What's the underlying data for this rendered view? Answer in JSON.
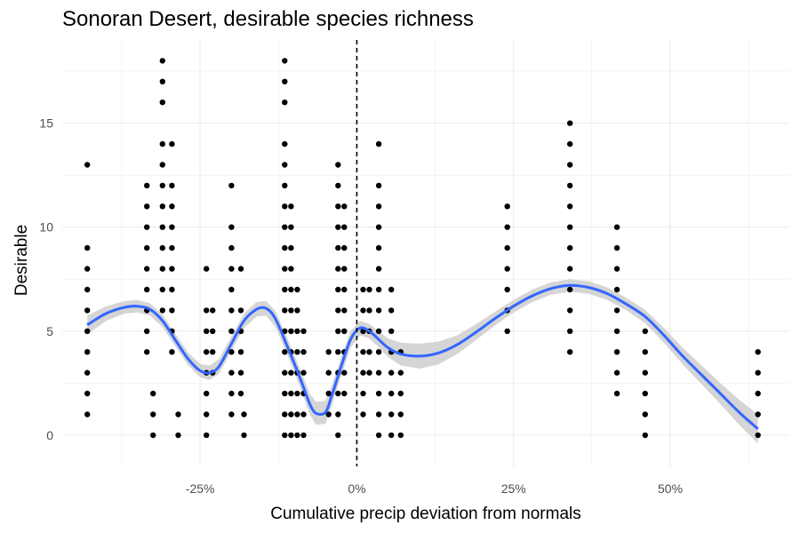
{
  "chart_data": {
    "type": "scatter",
    "title": "Sonoran Desert, desirable species richness",
    "xlabel": "Cumulative precip deviation from normals",
    "ylabel": "Desirable",
    "xlim": [
      -0.47,
      0.69
    ],
    "ylim": [
      -1.5,
      19
    ],
    "x_ticks": [
      -0.25,
      0,
      0.25,
      0.5
    ],
    "x_tick_labels": [
      "-25%",
      "0%",
      "25%",
      "50%"
    ],
    "y_ticks": [
      0,
      5,
      10,
      15
    ],
    "y_tick_labels": [
      "0",
      "5",
      "10",
      "15"
    ],
    "grid": true,
    "vline": {
      "x": 0,
      "style": "dashed",
      "color": "#000000"
    },
    "points_color": "#000000",
    "smooth_color": "#3366FF",
    "ribbon_color": "#D3D3D3",
    "points": [
      [
        -0.43,
        1
      ],
      [
        -0.43,
        2
      ],
      [
        -0.43,
        3
      ],
      [
        -0.43,
        4
      ],
      [
        -0.43,
        5
      ],
      [
        -0.43,
        6
      ],
      [
        -0.43,
        7
      ],
      [
        -0.43,
        8
      ],
      [
        -0.43,
        9
      ],
      [
        -0.43,
        13
      ],
      [
        -0.335,
        4
      ],
      [
        -0.335,
        5
      ],
      [
        -0.335,
        6
      ],
      [
        -0.335,
        7
      ],
      [
        -0.335,
        8
      ],
      [
        -0.335,
        9
      ],
      [
        -0.335,
        10
      ],
      [
        -0.335,
        11
      ],
      [
        -0.335,
        12
      ],
      [
        -0.325,
        0
      ],
      [
        -0.325,
        1
      ],
      [
        -0.325,
        2
      ],
      [
        -0.31,
        6
      ],
      [
        -0.31,
        7
      ],
      [
        -0.31,
        8
      ],
      [
        -0.31,
        9
      ],
      [
        -0.31,
        10
      ],
      [
        -0.31,
        11
      ],
      [
        -0.31,
        12
      ],
      [
        -0.31,
        13
      ],
      [
        -0.31,
        14
      ],
      [
        -0.31,
        16
      ],
      [
        -0.31,
        17
      ],
      [
        -0.31,
        18
      ],
      [
        -0.295,
        4
      ],
      [
        -0.295,
        5
      ],
      [
        -0.295,
        6
      ],
      [
        -0.295,
        7
      ],
      [
        -0.295,
        8
      ],
      [
        -0.295,
        9
      ],
      [
        -0.295,
        10
      ],
      [
        -0.295,
        11
      ],
      [
        -0.295,
        12
      ],
      [
        -0.295,
        14
      ],
      [
        -0.285,
        0
      ],
      [
        -0.285,
        1
      ],
      [
        -0.24,
        0
      ],
      [
        -0.24,
        1
      ],
      [
        -0.24,
        2
      ],
      [
        -0.24,
        3
      ],
      [
        -0.24,
        4
      ],
      [
        -0.24,
        5
      ],
      [
        -0.24,
        6
      ],
      [
        -0.24,
        8
      ],
      [
        -0.23,
        3
      ],
      [
        -0.23,
        4
      ],
      [
        -0.23,
        5
      ],
      [
        -0.23,
        6
      ],
      [
        -0.2,
        1
      ],
      [
        -0.2,
        2
      ],
      [
        -0.2,
        3
      ],
      [
        -0.2,
        4
      ],
      [
        -0.2,
        5
      ],
      [
        -0.2,
        6
      ],
      [
        -0.2,
        7
      ],
      [
        -0.2,
        8
      ],
      [
        -0.2,
        9
      ],
      [
        -0.2,
        10
      ],
      [
        -0.2,
        12
      ],
      [
        -0.185,
        2
      ],
      [
        -0.185,
        3
      ],
      [
        -0.185,
        4
      ],
      [
        -0.185,
        5
      ],
      [
        -0.185,
        6
      ],
      [
        -0.185,
        8
      ],
      [
        -0.18,
        0
      ],
      [
        -0.18,
        1
      ],
      [
        -0.115,
        0
      ],
      [
        -0.115,
        1
      ],
      [
        -0.115,
        2
      ],
      [
        -0.115,
        3
      ],
      [
        -0.115,
        4
      ],
      [
        -0.115,
        5
      ],
      [
        -0.115,
        6
      ],
      [
        -0.115,
        7
      ],
      [
        -0.115,
        8
      ],
      [
        -0.115,
        9
      ],
      [
        -0.115,
        10
      ],
      [
        -0.115,
        11
      ],
      [
        -0.115,
        12
      ],
      [
        -0.115,
        13
      ],
      [
        -0.115,
        14
      ],
      [
        -0.115,
        16
      ],
      [
        -0.115,
        17
      ],
      [
        -0.115,
        18
      ],
      [
        -0.105,
        0
      ],
      [
        -0.105,
        1
      ],
      [
        -0.105,
        2
      ],
      [
        -0.105,
        3
      ],
      [
        -0.105,
        4
      ],
      [
        -0.105,
        5
      ],
      [
        -0.105,
        6
      ],
      [
        -0.105,
        7
      ],
      [
        -0.105,
        8
      ],
      [
        -0.105,
        9
      ],
      [
        -0.105,
        10
      ],
      [
        -0.105,
        11
      ],
      [
        -0.095,
        0
      ],
      [
        -0.095,
        1
      ],
      [
        -0.095,
        2
      ],
      [
        -0.095,
        3
      ],
      [
        -0.095,
        4
      ],
      [
        -0.095,
        5
      ],
      [
        -0.095,
        6
      ],
      [
        -0.095,
        7
      ],
      [
        -0.085,
        0
      ],
      [
        -0.085,
        1
      ],
      [
        -0.085,
        2
      ],
      [
        -0.085,
        3
      ],
      [
        -0.085,
        4
      ],
      [
        -0.085,
        5
      ],
      [
        -0.045,
        1
      ],
      [
        -0.045,
        2
      ],
      [
        -0.045,
        3
      ],
      [
        -0.045,
        4
      ],
      [
        -0.03,
        0
      ],
      [
        -0.03,
        1
      ],
      [
        -0.03,
        2
      ],
      [
        -0.03,
        3
      ],
      [
        -0.03,
        4
      ],
      [
        -0.03,
        5
      ],
      [
        -0.03,
        6
      ],
      [
        -0.03,
        7
      ],
      [
        -0.03,
        8
      ],
      [
        -0.03,
        9
      ],
      [
        -0.03,
        10
      ],
      [
        -0.03,
        11
      ],
      [
        -0.03,
        12
      ],
      [
        -0.03,
        13
      ],
      [
        -0.02,
        2
      ],
      [
        -0.02,
        3
      ],
      [
        -0.02,
        4
      ],
      [
        -0.02,
        5
      ],
      [
        -0.02,
        6
      ],
      [
        -0.02,
        7
      ],
      [
        -0.02,
        8
      ],
      [
        -0.02,
        9
      ],
      [
        -0.02,
        10
      ],
      [
        -0.02,
        11
      ],
      [
        0.01,
        1
      ],
      [
        0.01,
        2
      ],
      [
        0.01,
        3
      ],
      [
        0.01,
        4
      ],
      [
        0.01,
        5
      ],
      [
        0.01,
        6
      ],
      [
        0.01,
        7
      ],
      [
        0.02,
        3
      ],
      [
        0.02,
        4
      ],
      [
        0.02,
        5
      ],
      [
        0.02,
        6
      ],
      [
        0.02,
        7
      ],
      [
        0.035,
        0
      ],
      [
        0.035,
        1
      ],
      [
        0.035,
        2
      ],
      [
        0.035,
        3
      ],
      [
        0.035,
        4
      ],
      [
        0.035,
        5
      ],
      [
        0.035,
        6
      ],
      [
        0.035,
        7
      ],
      [
        0.035,
        8
      ],
      [
        0.035,
        9
      ],
      [
        0.035,
        10
      ],
      [
        0.035,
        11
      ],
      [
        0.035,
        12
      ],
      [
        0.035,
        14
      ],
      [
        0.055,
        0
      ],
      [
        0.055,
        1
      ],
      [
        0.055,
        2
      ],
      [
        0.055,
        3
      ],
      [
        0.055,
        4
      ],
      [
        0.055,
        5
      ],
      [
        0.055,
        6
      ],
      [
        0.055,
        7
      ],
      [
        0.07,
        0
      ],
      [
        0.07,
        1
      ],
      [
        0.07,
        2
      ],
      [
        0.07,
        3
      ],
      [
        0.07,
        4
      ],
      [
        0.24,
        5
      ],
      [
        0.24,
        6
      ],
      [
        0.24,
        7
      ],
      [
        0.24,
        8
      ],
      [
        0.24,
        9
      ],
      [
        0.24,
        10
      ],
      [
        0.24,
        11
      ],
      [
        0.34,
        4
      ],
      [
        0.34,
        5
      ],
      [
        0.34,
        6
      ],
      [
        0.34,
        7
      ],
      [
        0.34,
        8
      ],
      [
        0.34,
        9
      ],
      [
        0.34,
        10
      ],
      [
        0.34,
        11
      ],
      [
        0.34,
        12
      ],
      [
        0.34,
        13
      ],
      [
        0.34,
        14
      ],
      [
        0.34,
        15
      ],
      [
        0.415,
        2
      ],
      [
        0.415,
        3
      ],
      [
        0.415,
        4
      ],
      [
        0.415,
        5
      ],
      [
        0.415,
        6
      ],
      [
        0.415,
        7
      ],
      [
        0.415,
        8
      ],
      [
        0.415,
        9
      ],
      [
        0.415,
        10
      ],
      [
        0.46,
        0
      ],
      [
        0.46,
        1
      ],
      [
        0.46,
        2
      ],
      [
        0.46,
        3
      ],
      [
        0.46,
        4
      ],
      [
        0.46,
        5
      ],
      [
        0.64,
        0
      ],
      [
        0.64,
        1
      ],
      [
        0.64,
        2
      ],
      [
        0.64,
        3
      ],
      [
        0.64,
        4
      ]
    ],
    "smooth": [
      [
        -0.43,
        5.3
      ],
      [
        -0.4,
        5.85
      ],
      [
        -0.37,
        6.15
      ],
      [
        -0.35,
        6.2
      ],
      [
        -0.33,
        6.05
      ],
      [
        -0.31,
        5.5
      ],
      [
        -0.29,
        4.6
      ],
      [
        -0.27,
        3.7
      ],
      [
        -0.25,
        3.1
      ],
      [
        -0.235,
        3.0
      ],
      [
        -0.22,
        3.3
      ],
      [
        -0.2,
        4.4
      ],
      [
        -0.18,
        5.5
      ],
      [
        -0.16,
        6.05
      ],
      [
        -0.145,
        6.1
      ],
      [
        -0.13,
        5.6
      ],
      [
        -0.11,
        4.2
      ],
      [
        -0.09,
        2.7
      ],
      [
        -0.075,
        1.5
      ],
      [
        -0.065,
        1.05
      ],
      [
        -0.05,
        1.1
      ],
      [
        -0.04,
        1.9
      ],
      [
        -0.025,
        3.3
      ],
      [
        -0.01,
        4.6
      ],
      [
        0.005,
        5.15
      ],
      [
        0.02,
        5.0
      ],
      [
        0.035,
        4.6
      ],
      [
        0.05,
        4.2
      ],
      [
        0.07,
        3.9
      ],
      [
        0.1,
        3.8
      ],
      [
        0.13,
        3.95
      ],
      [
        0.16,
        4.35
      ],
      [
        0.19,
        4.95
      ],
      [
        0.22,
        5.6
      ],
      [
        0.25,
        6.2
      ],
      [
        0.28,
        6.7
      ],
      [
        0.31,
        7.05
      ],
      [
        0.34,
        7.2
      ],
      [
        0.37,
        7.1
      ],
      [
        0.4,
        6.8
      ],
      [
        0.43,
        6.3
      ],
      [
        0.46,
        5.7
      ],
      [
        0.49,
        4.8
      ],
      [
        0.52,
        3.8
      ],
      [
        0.55,
        2.9
      ],
      [
        0.58,
        2.0
      ],
      [
        0.61,
        1.1
      ],
      [
        0.64,
        0.3
      ]
    ],
    "band_halfwidth": [
      0.45,
      0.35,
      0.3,
      0.3,
      0.3,
      0.3,
      0.3,
      0.3,
      0.32,
      0.35,
      0.35,
      0.35,
      0.35,
      0.35,
      0.35,
      0.38,
      0.4,
      0.45,
      0.5,
      0.55,
      0.55,
      0.5,
      0.45,
      0.4,
      0.35,
      0.35,
      0.38,
      0.45,
      0.55,
      0.6,
      0.55,
      0.45,
      0.38,
      0.33,
      0.3,
      0.3,
      0.3,
      0.3,
      0.3,
      0.3,
      0.3,
      0.32,
      0.35,
      0.4,
      0.45,
      0.5,
      0.6,
      0.7
    ]
  }
}
